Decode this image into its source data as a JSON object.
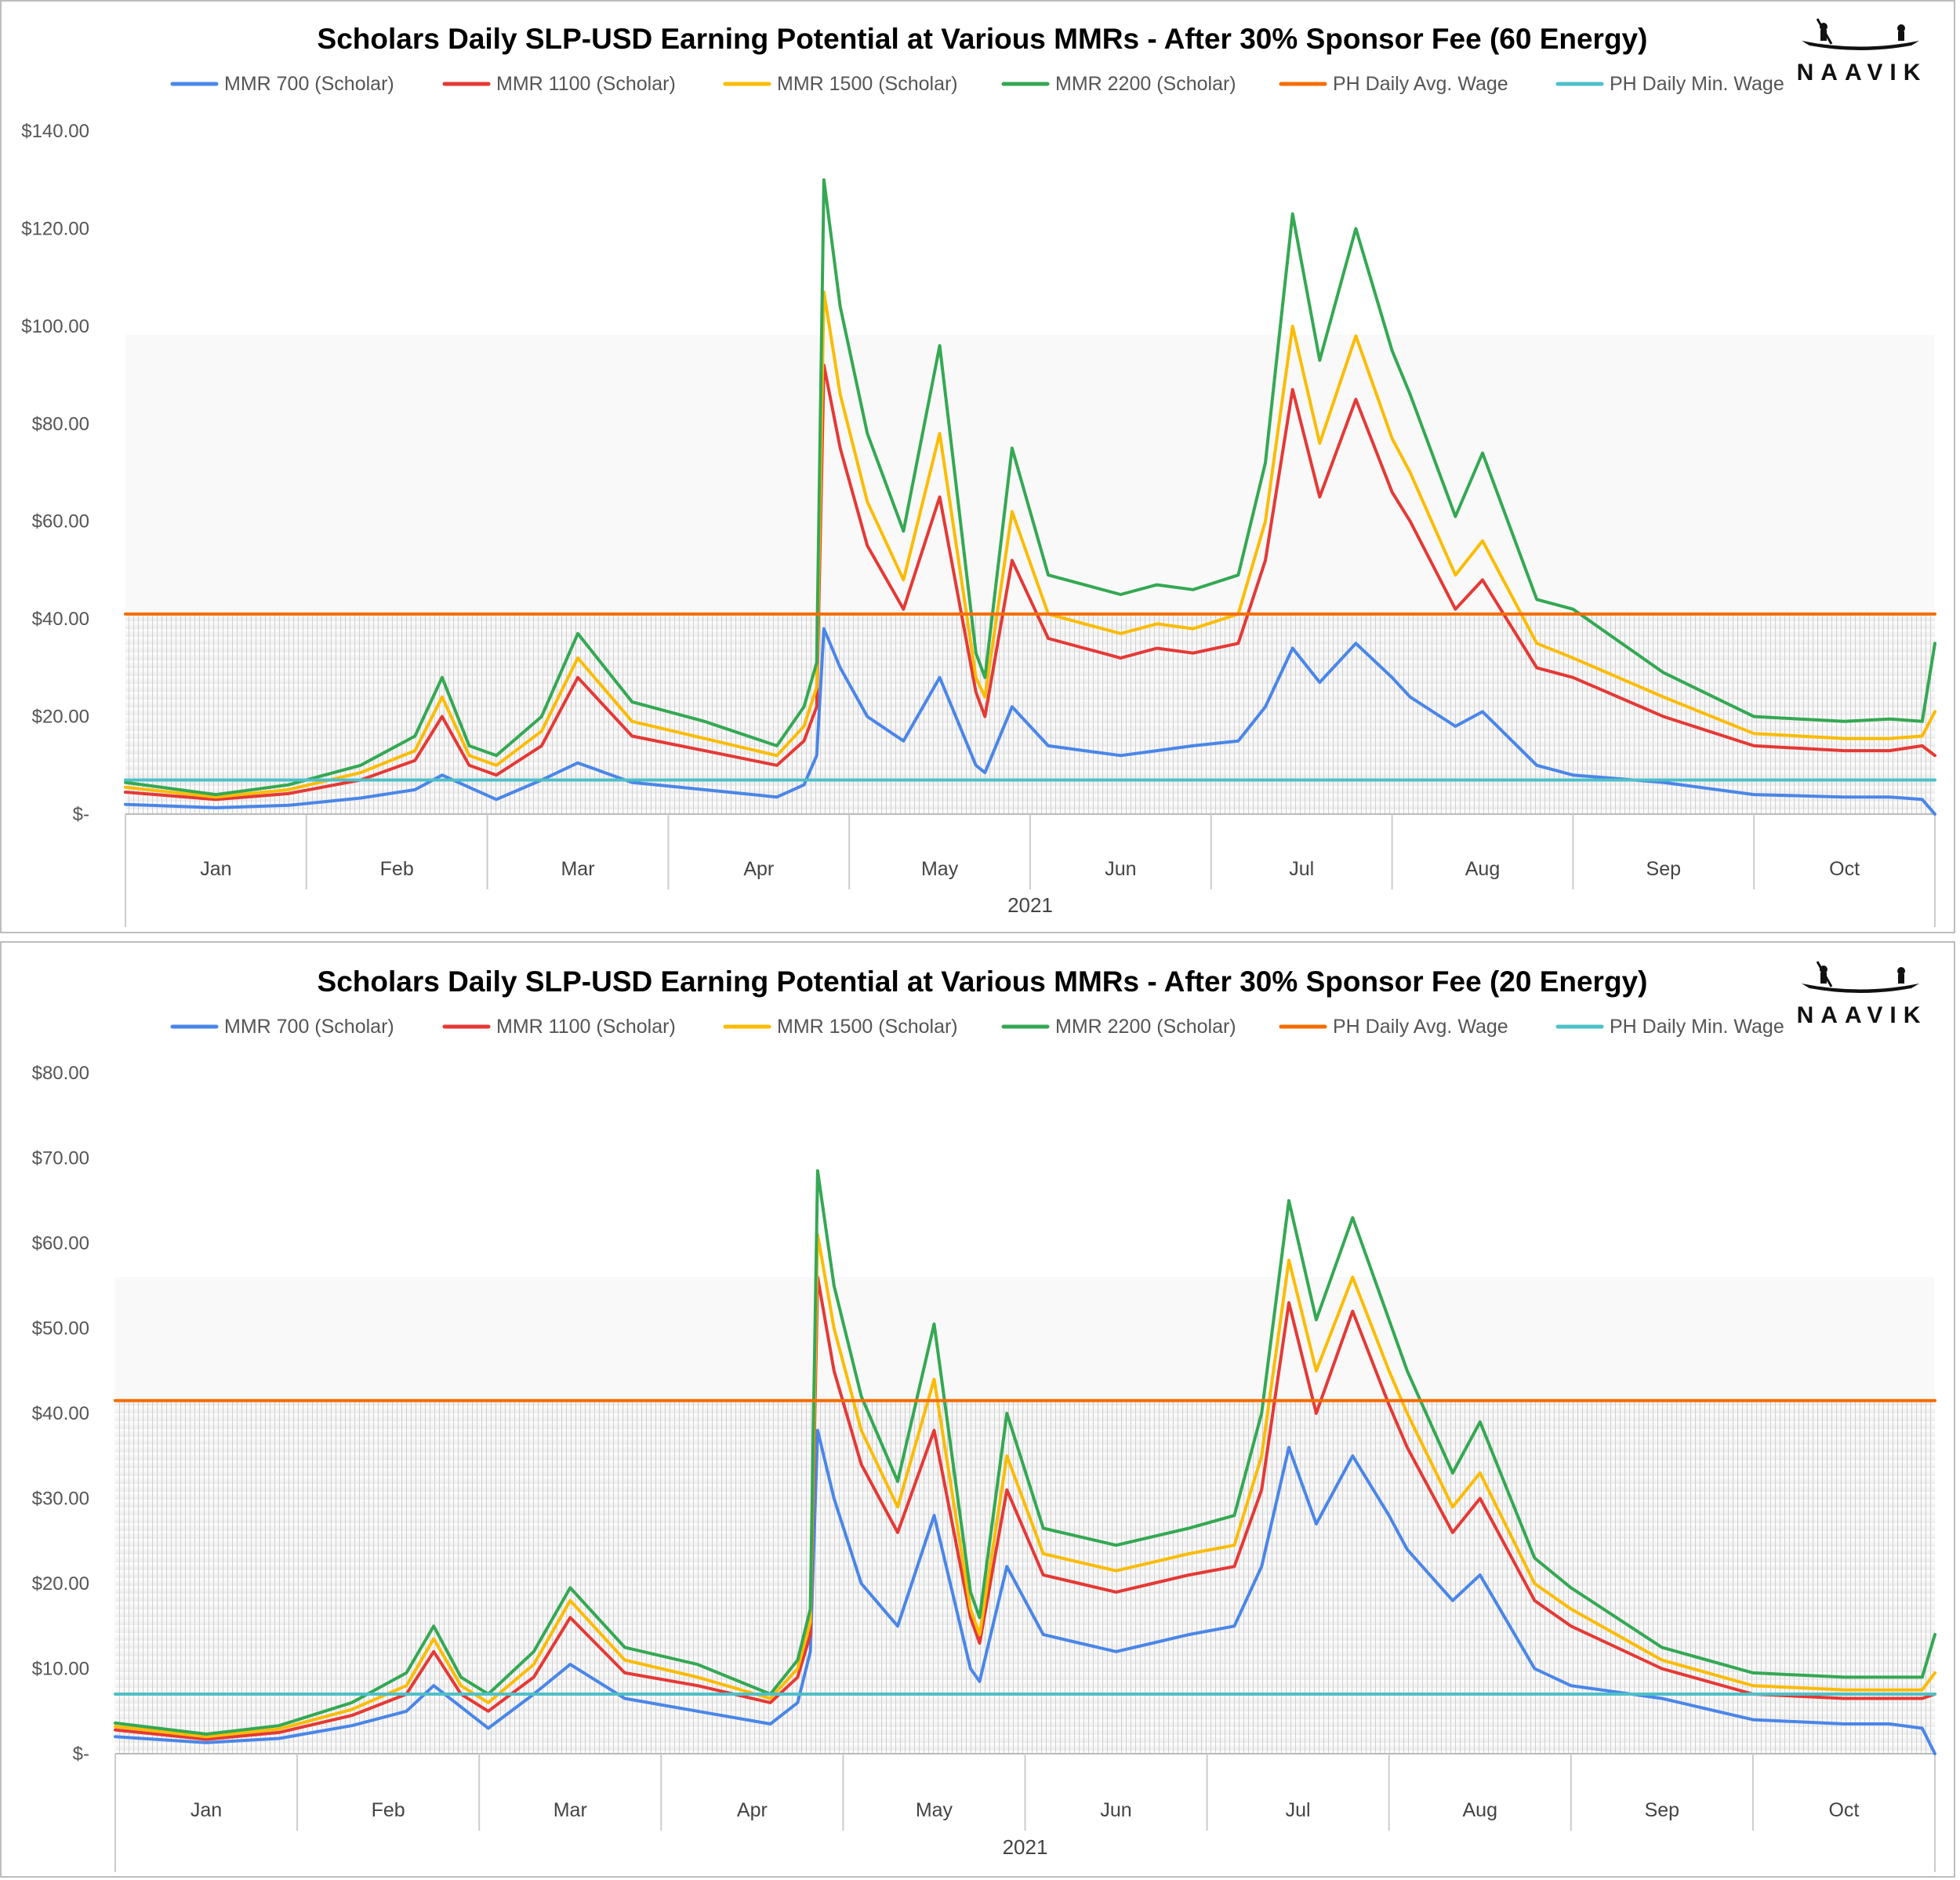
{
  "brand": {
    "name": "NAAVIK",
    "logo_icon": "canoe-icon"
  },
  "legend_colors": {
    "MMR 700 (Scholar)": "#4a86e8",
    "MMR 1100 (Scholar)": "#e53935",
    "MMR 1500 (Scholar)": "#fbbc04",
    "MMR 2200 (Scholar)": "#34a853",
    "PH Daily Avg. Wage": "#f46d00",
    "PH Daily Min. Wage": "#4ec0c8"
  },
  "chart_data": [
    {
      "type": "line",
      "title": "Scholars Daily SLP-USD Earning Potential at Various MMRs - After 30% Sponsor Fee (60 Energy)",
      "xlabel": "2021",
      "ylabel": "",
      "ylim": [
        0,
        140
      ],
      "yticks": [
        0,
        20,
        40,
        60,
        80,
        100,
        120,
        140
      ],
      "ytick_labels": [
        "$-",
        "$20.00",
        "$40.00",
        "$60.00",
        "$80.00",
        "$100.00",
        "$120.00",
        "$140.00"
      ],
      "categories": [
        "Jan",
        "Feb",
        "Mar",
        "Apr",
        "May",
        "Jun",
        "Jul",
        "Aug",
        "Sep",
        "Oct"
      ],
      "x_unit": "month index (0 = Jan 1, 10 = end of Oct)",
      "xlim": [
        0,
        10
      ],
      "legend_position": "top",
      "series": [
        {
          "name": "MMR 700 (Scholar)",
          "color": "#4a86e8",
          "x": [
            0,
            0.5,
            0.9,
            1.3,
            1.6,
            1.75,
            1.9,
            2.05,
            2.3,
            2.5,
            2.8,
            3.2,
            3.6,
            3.75,
            3.82,
            3.86,
            3.95,
            4.1,
            4.3,
            4.5,
            4.7,
            4.75,
            4.9,
            5.1,
            5.3,
            5.5,
            5.7,
            5.9,
            6.15,
            6.3,
            6.45,
            6.6,
            6.8,
            7.0,
            7.1,
            7.35,
            7.5,
            7.8,
            8.0,
            8.5,
            9.0,
            9.5,
            9.75,
            9.93,
            10.0
          ],
          "values": [
            2.0,
            1.3,
            1.8,
            3.3,
            5.0,
            8.0,
            5.5,
            3.0,
            7.0,
            10.5,
            6.5,
            5.0,
            3.5,
            6.0,
            12.0,
            38.0,
            30.0,
            20.0,
            15.0,
            28.0,
            10.0,
            8.5,
            22.0,
            14.0,
            13.0,
            12.0,
            13.0,
            14.0,
            15.0,
            22.0,
            34.0,
            27.0,
            35.0,
            28.0,
            24.0,
            18.0,
            21.0,
            10.0,
            8.0,
            6.5,
            4.0,
            3.5,
            3.5,
            3.0,
            0.0
          ]
        },
        {
          "name": "MMR 1100 (Scholar)",
          "color": "#e53935",
          "x": [
            0,
            0.5,
            0.9,
            1.3,
            1.6,
            1.75,
            1.9,
            2.05,
            2.3,
            2.5,
            2.8,
            3.2,
            3.6,
            3.75,
            3.82,
            3.86,
            3.95,
            4.1,
            4.3,
            4.5,
            4.7,
            4.75,
            4.9,
            5.1,
            5.3,
            5.5,
            5.7,
            5.9,
            6.15,
            6.3,
            6.45,
            6.6,
            6.8,
            7.0,
            7.1,
            7.35,
            7.5,
            7.8,
            8.0,
            8.5,
            9.0,
            9.5,
            9.75,
            9.93,
            10.0
          ],
          "values": [
            4.5,
            3.0,
            4.2,
            7.0,
            11.0,
            20.0,
            10.0,
            8.0,
            14.0,
            28.0,
            16.0,
            13.0,
            10.0,
            15.0,
            22.0,
            92.0,
            75.0,
            55.0,
            42.0,
            65.0,
            25.0,
            20.0,
            52.0,
            36.0,
            34.0,
            32.0,
            34.0,
            33.0,
            35.0,
            52.0,
            87.0,
            65.0,
            85.0,
            66.0,
            60.0,
            42.0,
            48.0,
            30.0,
            28.0,
            20.0,
            14.0,
            13.0,
            13.0,
            14.0,
            12.0
          ]
        },
        {
          "name": "MMR 1500 (Scholar)",
          "color": "#fbbc04",
          "x": [
            0,
            0.5,
            0.9,
            1.3,
            1.6,
            1.75,
            1.9,
            2.05,
            2.3,
            2.5,
            2.8,
            3.2,
            3.6,
            3.75,
            3.82,
            3.86,
            3.95,
            4.1,
            4.3,
            4.5,
            4.7,
            4.75,
            4.9,
            5.1,
            5.3,
            5.5,
            5.7,
            5.9,
            6.15,
            6.3,
            6.45,
            6.6,
            6.8,
            7.0,
            7.1,
            7.35,
            7.5,
            7.8,
            8.0,
            8.5,
            9.0,
            9.5,
            9.75,
            9.93,
            10.0
          ],
          "values": [
            5.5,
            3.5,
            5.0,
            8.5,
            13.0,
            24.0,
            12.0,
            10.0,
            17.0,
            32.0,
            19.0,
            15.5,
            12.0,
            18.0,
            26.0,
            107.0,
            86.0,
            64.0,
            48.0,
            78.0,
            28.0,
            24.0,
            62.0,
            41.0,
            39.0,
            37.0,
            39.0,
            38.0,
            41.0,
            60.0,
            100.0,
            76.0,
            98.0,
            77.0,
            70.0,
            49.0,
            56.0,
            35.0,
            32.0,
            24.0,
            16.5,
            15.5,
            15.5,
            16.0,
            21.0
          ]
        },
        {
          "name": "MMR 2200 (Scholar)",
          "color": "#34a853",
          "x": [
            0,
            0.5,
            0.9,
            1.3,
            1.6,
            1.75,
            1.9,
            2.05,
            2.3,
            2.5,
            2.8,
            3.2,
            3.6,
            3.75,
            3.82,
            3.86,
            3.95,
            4.1,
            4.3,
            4.5,
            4.7,
            4.75,
            4.9,
            5.1,
            5.3,
            5.5,
            5.7,
            5.9,
            6.15,
            6.3,
            6.45,
            6.6,
            6.8,
            7.0,
            7.1,
            7.35,
            7.5,
            7.8,
            8.0,
            8.5,
            9.0,
            9.5,
            9.75,
            9.93,
            10.0
          ],
          "values": [
            6.5,
            4.0,
            6.0,
            10.0,
            16.0,
            28.0,
            14.0,
            12.0,
            20.0,
            37.0,
            23.0,
            19.0,
            14.0,
            22.0,
            31.0,
            130.0,
            104.0,
            78.0,
            58.0,
            96.0,
            33.0,
            28.0,
            75.0,
            49.0,
            47.0,
            45.0,
            47.0,
            46.0,
            49.0,
            72.0,
            123.0,
            93.0,
            120.0,
            95.0,
            86.0,
            61.0,
            74.0,
            44.0,
            42.0,
            29.0,
            20.0,
            19.0,
            19.5,
            19.0,
            35.0
          ]
        },
        {
          "name": "PH Daily Avg. Wage",
          "color": "#f46d00",
          "x": [
            0,
            10
          ],
          "values": [
            41.0,
            41.0
          ]
        },
        {
          "name": "PH Daily Min. Wage",
          "color": "#4ec0c8",
          "x": [
            0,
            10
          ],
          "values": [
            7.0,
            7.0
          ]
        }
      ]
    },
    {
      "type": "line",
      "title": "Scholars Daily SLP-USD Earning Potential at Various MMRs - After 30% Sponsor Fee (20 Energy)",
      "xlabel": "2021",
      "ylabel": "",
      "ylim": [
        0,
        80
      ],
      "yticks": [
        0,
        10,
        20,
        30,
        40,
        50,
        60,
        70,
        80
      ],
      "ytick_labels": [
        "$-",
        "$10.00",
        "$20.00",
        "$30.00",
        "$40.00",
        "$50.00",
        "$60.00",
        "$70.00",
        "$80.00"
      ],
      "categories": [
        "Jan",
        "Feb",
        "Mar",
        "Apr",
        "May",
        "Jun",
        "Jul",
        "Aug",
        "Sep",
        "Oct"
      ],
      "x_unit": "month index (0 = Jan 1, 10 = end of Oct)",
      "xlim": [
        0,
        10
      ],
      "legend_position": "top",
      "series": [
        {
          "name": "MMR 700 (Scholar)",
          "color": "#4a86e8",
          "x": [
            0,
            0.5,
            0.9,
            1.3,
            1.6,
            1.75,
            1.9,
            2.05,
            2.3,
            2.5,
            2.8,
            3.2,
            3.6,
            3.75,
            3.82,
            3.86,
            3.95,
            4.1,
            4.3,
            4.5,
            4.7,
            4.75,
            4.9,
            5.1,
            5.3,
            5.5,
            5.7,
            5.9,
            6.15,
            6.3,
            6.45,
            6.6,
            6.8,
            7.0,
            7.1,
            7.35,
            7.5,
            7.8,
            8.0,
            8.5,
            9.0,
            9.5,
            9.75,
            9.93,
            10.0
          ],
          "values": [
            2.0,
            1.3,
            1.8,
            3.3,
            5.0,
            8.0,
            5.5,
            3.0,
            7.0,
            10.5,
            6.5,
            5.0,
            3.5,
            6.0,
            12.0,
            38.0,
            30.0,
            20.0,
            15.0,
            28.0,
            10.0,
            8.5,
            22.0,
            14.0,
            13.0,
            12.0,
            13.0,
            14.0,
            15.0,
            22.0,
            36.0,
            27.0,
            35.0,
            28.0,
            24.0,
            18.0,
            21.0,
            10.0,
            8.0,
            6.5,
            4.0,
            3.5,
            3.5,
            3.0,
            0.0
          ]
        },
        {
          "name": "MMR 1100 (Scholar)",
          "color": "#e53935",
          "x": [
            0,
            0.5,
            0.9,
            1.3,
            1.6,
            1.75,
            1.9,
            2.05,
            2.3,
            2.5,
            2.8,
            3.2,
            3.6,
            3.75,
            3.82,
            3.86,
            3.95,
            4.1,
            4.3,
            4.5,
            4.7,
            4.75,
            4.9,
            5.1,
            5.3,
            5.5,
            5.7,
            5.9,
            6.15,
            6.3,
            6.45,
            6.6,
            6.8,
            7.0,
            7.1,
            7.35,
            7.5,
            7.8,
            8.0,
            8.5,
            9.0,
            9.5,
            9.75,
            9.93,
            10.0
          ],
          "values": [
            2.8,
            1.7,
            2.5,
            4.5,
            7.0,
            12.0,
            7.0,
            5.0,
            9.0,
            16.0,
            9.5,
            8.0,
            6.0,
            9.0,
            14.0,
            56.0,
            45.0,
            34.0,
            26.0,
            38.0,
            16.0,
            13.0,
            31.0,
            21.0,
            20.0,
            19.0,
            20.0,
            21.0,
            22.0,
            31.0,
            53.0,
            40.0,
            52.0,
            41.0,
            36.0,
            26.0,
            30.0,
            18.0,
            15.0,
            10.0,
            7.0,
            6.5,
            6.5,
            6.5,
            7.0
          ]
        },
        {
          "name": "MMR 1500 (Scholar)",
          "color": "#fbbc04",
          "x": [
            0,
            0.5,
            0.9,
            1.3,
            1.6,
            1.75,
            1.9,
            2.05,
            2.3,
            2.5,
            2.8,
            3.2,
            3.6,
            3.75,
            3.82,
            3.86,
            3.95,
            4.1,
            4.3,
            4.5,
            4.7,
            4.75,
            4.9,
            5.1,
            5.3,
            5.5,
            5.7,
            5.9,
            6.15,
            6.3,
            6.45,
            6.6,
            6.8,
            7.0,
            7.1,
            7.35,
            7.5,
            7.8,
            8.0,
            8.5,
            9.0,
            9.5,
            9.75,
            9.93,
            10.0
          ],
          "values": [
            3.2,
            2.0,
            2.9,
            5.2,
            8.0,
            13.5,
            8.0,
            6.0,
            10.5,
            18.0,
            11.0,
            9.0,
            6.5,
            10.0,
            15.5,
            61.0,
            50.0,
            38.0,
            29.0,
            44.0,
            17.0,
            14.0,
            35.0,
            23.5,
            22.5,
            21.5,
            22.5,
            23.5,
            24.5,
            35.0,
            58.0,
            45.0,
            56.0,
            45.0,
            40.0,
            29.0,
            33.0,
            20.0,
            17.0,
            11.0,
            8.0,
            7.5,
            7.5,
            7.5,
            9.5
          ]
        },
        {
          "name": "MMR 2200 (Scholar)",
          "color": "#34a853",
          "x": [
            0,
            0.5,
            0.9,
            1.3,
            1.6,
            1.75,
            1.9,
            2.05,
            2.3,
            2.5,
            2.8,
            3.2,
            3.6,
            3.75,
            3.82,
            3.86,
            3.95,
            4.1,
            4.3,
            4.5,
            4.7,
            4.75,
            4.9,
            5.1,
            5.3,
            5.5,
            5.7,
            5.9,
            6.15,
            6.3,
            6.45,
            6.6,
            6.8,
            7.0,
            7.1,
            7.35,
            7.5,
            7.8,
            8.0,
            8.5,
            9.0,
            9.5,
            9.75,
            9.93,
            10.0
          ],
          "values": [
            3.6,
            2.3,
            3.3,
            6.0,
            9.5,
            15.0,
            9.0,
            7.0,
            12.0,
            19.5,
            12.5,
            10.5,
            7.0,
            11.0,
            17.0,
            68.5,
            55.0,
            42.0,
            32.0,
            50.5,
            19.0,
            16.0,
            40.0,
            26.5,
            25.5,
            24.5,
            25.5,
            26.5,
            28.0,
            40.0,
            65.0,
            51.0,
            63.0,
            51.0,
            45.0,
            33.0,
            39.0,
            23.0,
            19.5,
            12.5,
            9.5,
            9.0,
            9.0,
            9.0,
            14.0
          ]
        },
        {
          "name": "PH Daily Avg. Wage",
          "color": "#f46d00",
          "x": [
            0,
            10
          ],
          "values": [
            41.5,
            41.5
          ]
        },
        {
          "name": "PH Daily Min. Wage",
          "color": "#4ec0c8",
          "x": [
            0,
            10
          ],
          "values": [
            7.0,
            7.0
          ]
        }
      ]
    }
  ]
}
